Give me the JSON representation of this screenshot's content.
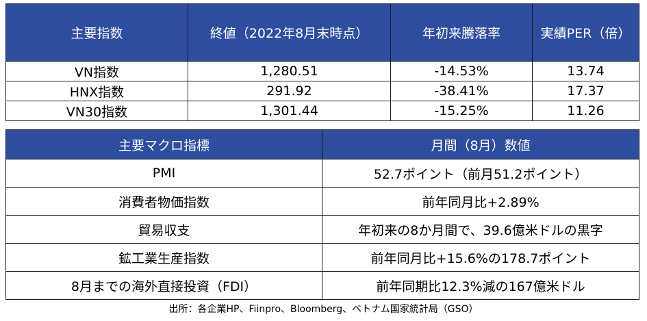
{
  "index_table": {
    "headers": [
      "主要指数",
      "終値（2022年8月末時点）",
      "年初来騰落率",
      "実績PER（倍）"
    ],
    "rows": [
      [
        "VN指数",
        "1,280.51",
        "-14.53%",
        "13.74"
      ],
      [
        "HNX指数",
        "291.92",
        "-38.41%",
        "17.37"
      ],
      [
        "VN30指数",
        "1,301.44",
        "-15.25%",
        "11.26"
      ]
    ]
  },
  "macro_table": {
    "headers": [
      "主要マクロ指標",
      "月間（8月）数値"
    ],
    "rows": [
      [
        "PMI",
        "52.7ポイント（前月51.2ポイント）"
      ],
      [
        "消費者物価指数",
        "前年同月比+2.89%"
      ],
      [
        "貿易収支",
        "年初来の8か月間で、39.6億米ドルの黒字"
      ],
      [
        "鉱工業生産指数",
        "前年同月比+15.6%の178.7ポイント"
      ],
      [
        "8月までの海外直接投資（FDI）",
        "前年同期比12.3%減の167億米ドル"
      ]
    ]
  },
  "source": "出所：各企業HP、Fiinpro、Bloomberg、ベトナム国家統計局（GSO）",
  "colors": {
    "header_bg": "#2e4d9e",
    "header_text": "#ffffff",
    "border": "#1a1a1a"
  }
}
